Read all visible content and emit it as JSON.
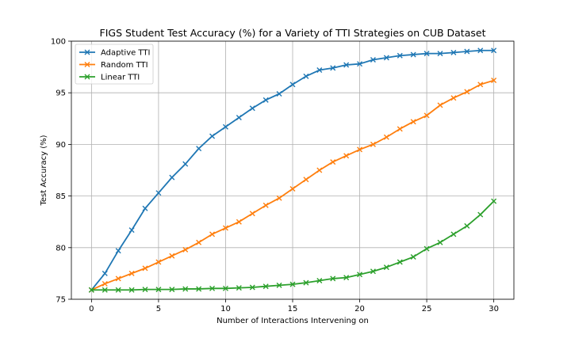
{
  "chart_data": {
    "type": "line",
    "title": "FIGS Student Test Accuracy (%) for a Variety of TTI Strategies on CUB Dataset",
    "xlabel": "Number of Interactions Intervening on",
    "ylabel": "Test Accuracy (%)",
    "xlim": [
      -1.5,
      31.5
    ],
    "ylim": [
      75,
      100
    ],
    "xticks": [
      0,
      5,
      10,
      15,
      20,
      25,
      30
    ],
    "yticks": [
      75,
      80,
      85,
      90,
      95,
      100
    ],
    "grid": true,
    "legend_position": "upper-left",
    "marker": "x",
    "x": [
      0,
      1,
      2,
      3,
      4,
      5,
      6,
      7,
      8,
      9,
      10,
      11,
      12,
      13,
      14,
      15,
      16,
      17,
      18,
      19,
      20,
      21,
      22,
      23,
      24,
      25,
      26,
      27,
      28,
      29,
      30
    ],
    "series": [
      {
        "name": "Adaptive TTI",
        "color": "#1f77b4",
        "values": [
          75.9,
          77.5,
          79.7,
          81.7,
          83.8,
          85.3,
          86.8,
          88.1,
          89.6,
          90.8,
          91.7,
          92.6,
          93.5,
          94.3,
          94.9,
          95.8,
          96.6,
          97.2,
          97.4,
          97.7,
          97.8,
          98.2,
          98.4,
          98.6,
          98.7,
          98.8,
          98.8,
          98.9,
          99.0,
          99.1,
          99.1
        ]
      },
      {
        "name": "Random TTI",
        "color": "#ff7f0e",
        "values": [
          75.9,
          76.5,
          77.0,
          77.5,
          78.0,
          78.6,
          79.2,
          79.8,
          80.5,
          81.3,
          81.9,
          82.5,
          83.3,
          84.1,
          84.8,
          85.7,
          86.6,
          87.5,
          88.3,
          88.9,
          89.5,
          90.0,
          90.7,
          91.5,
          92.2,
          92.8,
          93.8,
          94.5,
          95.1,
          95.8,
          96.2
        ]
      },
      {
        "name": "Linear TTI",
        "color": "#2ca02c",
        "values": [
          75.9,
          75.9,
          75.9,
          75.9,
          75.95,
          75.95,
          75.95,
          76.0,
          76.0,
          76.05,
          76.05,
          76.1,
          76.15,
          76.25,
          76.35,
          76.45,
          76.6,
          76.8,
          77.0,
          77.1,
          77.4,
          77.7,
          78.1,
          78.6,
          79.1,
          79.9,
          80.5,
          81.3,
          82.1,
          83.2,
          84.5
        ]
      }
    ]
  }
}
